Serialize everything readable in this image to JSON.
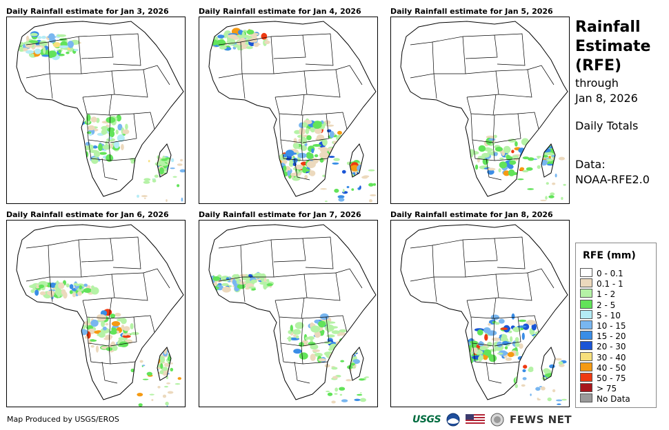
{
  "panels": [
    {
      "title": "Daily Rainfall estimate for Jan 3, 2026"
    },
    {
      "title": "Daily Rainfall estimate for Jan 4, 2026"
    },
    {
      "title": "Daily Rainfall estimate for Jan 5, 2026"
    },
    {
      "title": "Daily Rainfall estimate for Jan 6, 2026"
    },
    {
      "title": "Daily Rainfall estimate for Jan 7, 2026"
    },
    {
      "title": "Daily Rainfall estimate for Jan 8, 2026"
    }
  ],
  "side": {
    "title_line1": "Rainfall",
    "title_line2": "Estimate",
    "title_line3": "(RFE)",
    "through": "through",
    "date": "Jan 8, 2026",
    "totals": "Daily Totals",
    "data_label": "Data:",
    "data_source": "NOAA-RFE2.0"
  },
  "legend": {
    "title": "RFE (mm)",
    "items": [
      {
        "label": "0 - 0.1",
        "color": "#ffffff"
      },
      {
        "label": "0.1 - 1",
        "color": "#ecd9bd"
      },
      {
        "label": "1 - 2",
        "color": "#b5f2a6"
      },
      {
        "label": "2 - 5",
        "color": "#62e35a"
      },
      {
        "label": "5 - 10",
        "color": "#b4ecf6"
      },
      {
        "label": "10 - 15",
        "color": "#78b6f0"
      },
      {
        "label": "15 - 20",
        "color": "#3a8de6"
      },
      {
        "label": "20 - 30",
        "color": "#1a55d6"
      },
      {
        "label": "30 - 40",
        "color": "#f7df7c"
      },
      {
        "label": "40 - 50",
        "color": "#f59a13"
      },
      {
        "label": "50 - 75",
        "color": "#ee3a12"
      },
      {
        "label": "> 75",
        "color": "#a8161c"
      },
      {
        "label": "No Data",
        "color": "#9a9a9a"
      }
    ]
  },
  "credit": "Map Produced by USGS/EROS",
  "logos": {
    "usgs": "USGS",
    "fews": "FEWS NET"
  }
}
